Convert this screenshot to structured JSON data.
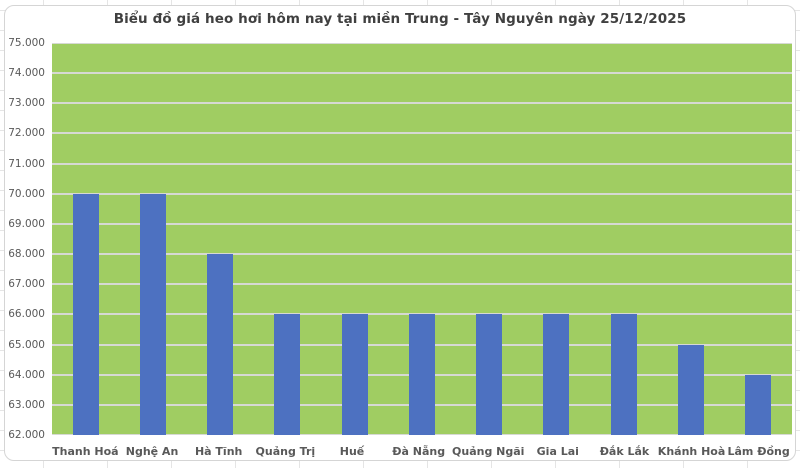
{
  "window": {
    "background": "excel-worksheet-grid",
    "sheet_grid_color": "#e5e5e5"
  },
  "chart_data": {
    "type": "bar",
    "title": "Biểu đồ giá heo hơi hôm nay tại miền Trung - Tây Nguyên ngày 25/12/2025",
    "categories": [
      "Thanh Hoá",
      "Nghệ An",
      "Hà Tĩnh",
      "Quảng Trị",
      "Huế",
      "Đà Nẵng",
      "Quảng Ngãi",
      "Gia Lai",
      "Đắk Lắk",
      "Khánh Hoà",
      "Lâm Đồng"
    ],
    "values": [
      70000,
      70000,
      68000,
      66000,
      66000,
      66000,
      66000,
      66000,
      66000,
      65000,
      64000
    ],
    "xlabel": "",
    "ylabel": "",
    "ylim": [
      62000,
      75000
    ],
    "ytick_step": 1000,
    "ytick_labels": [
      "75.000",
      "74.000",
      "73.000",
      "72.000",
      "71.000",
      "70.000",
      "69.000",
      "68.000",
      "67.000",
      "66.000",
      "65.000",
      "64.000",
      "63.000",
      "62.000"
    ],
    "grid": true,
    "legend_position": "none",
    "colors": {
      "bar": "#4D71C1",
      "plot_background": "#A0CD62",
      "gridline": "#D9D9D9",
      "title_text": "#404040",
      "axis_text": "#595959",
      "chart_border": "#D5D5D5",
      "chart_background": "#FFFFFF"
    }
  }
}
